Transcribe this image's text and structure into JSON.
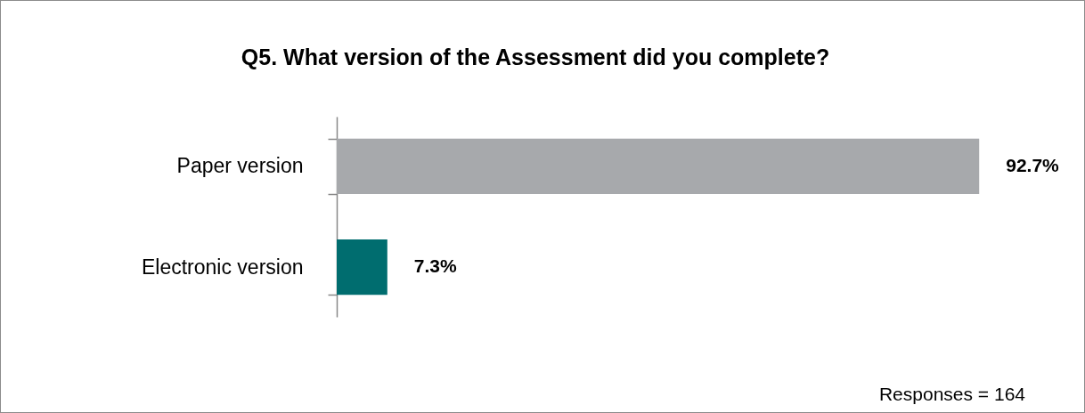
{
  "chart_data": {
    "type": "bar",
    "orientation": "horizontal",
    "title": "Q5. What version of the Assessment did you complete?",
    "categories": [
      "Paper version",
      "Electronic version"
    ],
    "values": [
      92.7,
      7.3
    ],
    "colors": [
      "#a7a9ac",
      "#006d6f"
    ],
    "value_labels": [
      "92.7%",
      "7.3%"
    ],
    "annotations": [
      "Responses = 164"
    ]
  }
}
